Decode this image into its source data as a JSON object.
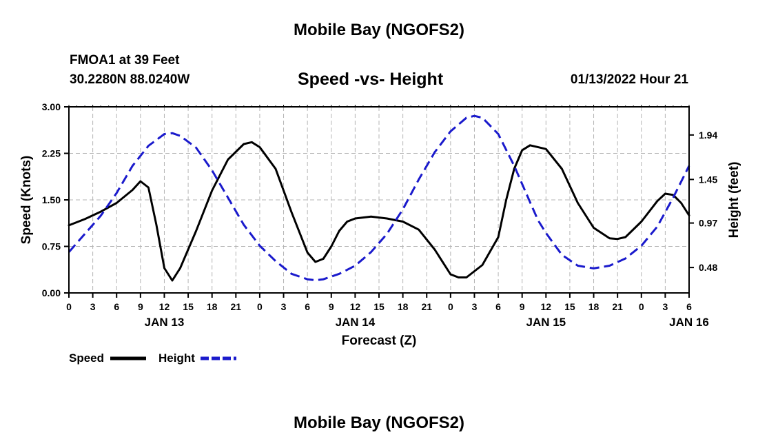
{
  "header": {
    "title": "Mobile Bay (NGOFS2)",
    "station": "FMOA1 at 39 Feet",
    "coords": "30.2280N  88.0240W",
    "subtitle": "Speed -vs- Height",
    "datetime": "01/13/2022 Hour 21",
    "footer_title": "Mobile Bay (NGOFS2)"
  },
  "chart_data": {
    "type": "line",
    "title": "Speed -vs- Height",
    "xlabel": "Forecast (Z)",
    "ylabel": "Speed (Knots)",
    "y2label": "Height (feet)",
    "xlim": [
      0,
      78
    ],
    "ylim": [
      0,
      3
    ],
    "y2lim": [
      0.2,
      2.25
    ],
    "grid": true,
    "x_tick_values": [
      0,
      3,
      6,
      9,
      12,
      15,
      18,
      21,
      24,
      27,
      30,
      33,
      36,
      39,
      42,
      45,
      48,
      51,
      54,
      57,
      60,
      63,
      66,
      69,
      72,
      75,
      78
    ],
    "x_tick_labels": [
      "0",
      "3",
      "6",
      "9",
      "12",
      "15",
      "18",
      "21",
      "0",
      "3",
      "6",
      "9",
      "12",
      "15",
      "18",
      "21",
      "0",
      "3",
      "6",
      "9",
      "12",
      "15",
      "18",
      "21",
      "0",
      "3",
      "6"
    ],
    "day_labels": [
      {
        "x": 12,
        "label": "JAN 13"
      },
      {
        "x": 36,
        "label": "JAN 14"
      },
      {
        "x": 60,
        "label": "JAN 15"
      },
      {
        "x": 78,
        "label": "JAN 16"
      }
    ],
    "y_ticks": [
      0,
      0.75,
      1.5,
      2.25,
      3.0
    ],
    "y_tick_labels": [
      "0.00",
      "0.75",
      "1.50",
      "2.25",
      "3.00"
    ],
    "y2_ticks": [
      0.48,
      0.97,
      1.45,
      1.94
    ],
    "y2_tick_labels": [
      "0.48",
      "0.97",
      "1.45",
      "1.94"
    ],
    "legend": {
      "position": "bottom-left",
      "entries": [
        {
          "name": "Speed",
          "color": "#000000",
          "style": "solid"
        },
        {
          "name": "Height",
          "color": "#1a1acc",
          "style": "dashed"
        }
      ]
    },
    "series": [
      {
        "name": "Speed",
        "axis": "left",
        "color": "#000000",
        "style": "solid",
        "x": [
          0,
          2,
          4,
          6,
          8,
          9,
          10,
          11,
          12,
          13,
          14,
          16,
          18,
          20,
          22,
          23,
          24,
          26,
          28,
          30,
          31,
          32,
          33,
          34,
          35,
          36,
          38,
          40,
          42,
          44,
          46,
          48,
          49,
          50,
          52,
          54,
          55,
          56,
          57,
          58,
          60,
          62,
          64,
          66,
          68,
          69,
          70,
          72,
          74,
          75,
          76,
          77,
          78
        ],
        "y": [
          1.09,
          1.19,
          1.31,
          1.45,
          1.66,
          1.8,
          1.7,
          1.1,
          0.4,
          0.2,
          0.4,
          1.0,
          1.65,
          2.15,
          2.4,
          2.43,
          2.35,
          2.0,
          1.3,
          0.65,
          0.5,
          0.55,
          0.75,
          1.0,
          1.15,
          1.2,
          1.23,
          1.2,
          1.15,
          1.02,
          0.7,
          0.3,
          0.25,
          0.25,
          0.45,
          0.9,
          1.5,
          2.0,
          2.3,
          2.38,
          2.32,
          2.0,
          1.45,
          1.05,
          0.88,
          0.87,
          0.9,
          1.15,
          1.48,
          1.6,
          1.58,
          1.45,
          1.25
        ]
      },
      {
        "name": "Height",
        "axis": "right",
        "color": "#1a1acc",
        "style": "dashed",
        "x": [
          0,
          2,
          4,
          6,
          8,
          10,
          12,
          13,
          14,
          16,
          18,
          20,
          22,
          24,
          26,
          28,
          30,
          31,
          32,
          34,
          36,
          38,
          40,
          42,
          44,
          46,
          48,
          50,
          51,
          52,
          54,
          56,
          58,
          59,
          60,
          62,
          64,
          66,
          68,
          70,
          72,
          74,
          76,
          78
        ],
        "y": [
          0.65,
          0.85,
          1.05,
          1.3,
          1.6,
          1.82,
          1.95,
          1.96,
          1.93,
          1.8,
          1.55,
          1.25,
          0.95,
          0.72,
          0.55,
          0.41,
          0.35,
          0.34,
          0.35,
          0.41,
          0.5,
          0.65,
          0.85,
          1.12,
          1.45,
          1.75,
          1.98,
          2.13,
          2.15,
          2.13,
          1.95,
          1.6,
          1.2,
          1.0,
          0.86,
          0.62,
          0.5,
          0.47,
          0.5,
          0.58,
          0.72,
          0.93,
          1.25,
          1.6
        ]
      }
    ]
  }
}
